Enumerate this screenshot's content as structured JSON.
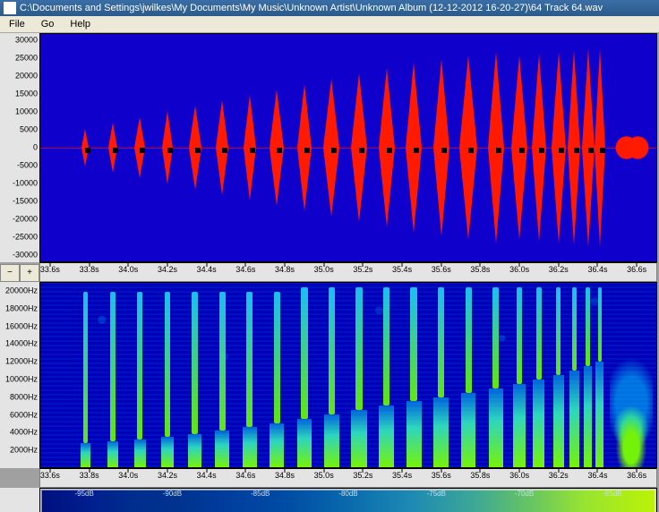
{
  "window": {
    "title": "C:\\Documents and Settings\\jwilkes\\My Documents\\My Music\\Unknown Artist\\Unknown Album (12-12-2012 16-20-27)\\64 Track 64.wav"
  },
  "menubar": {
    "items": [
      "File",
      "Go",
      "Help"
    ]
  },
  "colors": {
    "plot_bg": "#1000cc",
    "spec_bg": "#0000b8",
    "waveform": "#ff1a00",
    "axis_bg": "#e4e4e4",
    "text": "#000000",
    "spec_low": "#001080",
    "spec_high": "#c6ff00",
    "titlebar": "#3a6ea5",
    "menubar_bg": "#ece9d8"
  },
  "waveform": {
    "y_unit": "amplitude",
    "y_ticks": [
      -30000,
      -25000,
      -20000,
      -15000,
      -10000,
      -5000,
      0,
      5000,
      10000,
      15000,
      20000,
      25000,
      30000
    ],
    "ylim": [
      -32000,
      32000
    ],
    "x_unit": "s",
    "x_ticks": [
      33.6,
      33.8,
      34.0,
      34.2,
      34.4,
      34.6,
      34.8,
      35.0,
      35.2,
      35.4,
      35.6,
      35.8,
      36.0,
      36.2,
      36.4,
      36.6
    ],
    "xlim": [
      33.55,
      36.7
    ],
    "zoom_buttons": [
      "−",
      "+"
    ],
    "bursts": [
      {
        "t": 33.78,
        "amp": 5500,
        "w": 0.045
      },
      {
        "t": 33.92,
        "amp": 7200,
        "w": 0.05
      },
      {
        "t": 34.06,
        "amp": 8800,
        "w": 0.055
      },
      {
        "t": 34.2,
        "amp": 10400,
        "w": 0.06
      },
      {
        "t": 34.34,
        "amp": 12000,
        "w": 0.065
      },
      {
        "t": 34.48,
        "amp": 13500,
        "w": 0.068
      },
      {
        "t": 34.62,
        "amp": 15000,
        "w": 0.072
      },
      {
        "t": 34.76,
        "amp": 16500,
        "w": 0.076
      },
      {
        "t": 34.9,
        "amp": 18000,
        "w": 0.08
      },
      {
        "t": 35.04,
        "amp": 19500,
        "w": 0.084
      },
      {
        "t": 35.18,
        "amp": 21000,
        "w": 0.088
      },
      {
        "t": 35.32,
        "amp": 22500,
        "w": 0.088
      },
      {
        "t": 35.46,
        "amp": 24000,
        "w": 0.09
      },
      {
        "t": 35.6,
        "amp": 25000,
        "w": 0.09
      },
      {
        "t": 35.74,
        "amp": 26000,
        "w": 0.092
      },
      {
        "t": 35.88,
        "amp": 27000,
        "w": 0.09
      },
      {
        "t": 36.0,
        "amp": 26000,
        "w": 0.085
      },
      {
        "t": 36.1,
        "amp": 26500,
        "w": 0.08
      },
      {
        "t": 36.2,
        "amp": 27000,
        "w": 0.075
      },
      {
        "t": 36.28,
        "amp": 27500,
        "w": 0.07
      },
      {
        "t": 36.35,
        "amp": 28000,
        "w": 0.065
      },
      {
        "t": 36.41,
        "amp": 28000,
        "w": 0.055
      }
    ]
  },
  "spectrogram": {
    "y_unit": "Hz",
    "y_ticks": [
      2000,
      4000,
      6000,
      8000,
      10000,
      12000,
      14000,
      16000,
      18000,
      20000
    ],
    "ylim": [
      0,
      21000
    ],
    "x_ticks": [
      33.6,
      33.8,
      34.0,
      34.2,
      34.4,
      34.6,
      34.8,
      35.0,
      35.2,
      35.4,
      35.6,
      35.8,
      36.0,
      36.2,
      36.4,
      36.6
    ],
    "xlim": [
      33.55,
      36.7
    ],
    "columns": [
      {
        "t": 33.78,
        "base_hz": 2800,
        "top_hz": 20000,
        "w": 0.05
      },
      {
        "t": 33.92,
        "base_hz": 3000,
        "top_hz": 20000,
        "w": 0.055
      },
      {
        "t": 34.06,
        "base_hz": 3200,
        "top_hz": 20000,
        "w": 0.06
      },
      {
        "t": 34.2,
        "base_hz": 3500,
        "top_hz": 20000,
        "w": 0.065
      },
      {
        "t": 34.34,
        "base_hz": 3800,
        "top_hz": 20000,
        "w": 0.068
      },
      {
        "t": 34.48,
        "base_hz": 4200,
        "top_hz": 20000,
        "w": 0.07
      },
      {
        "t": 34.62,
        "base_hz": 4600,
        "top_hz": 20000,
        "w": 0.072
      },
      {
        "t": 34.76,
        "base_hz": 5000,
        "top_hz": 20000,
        "w": 0.074
      },
      {
        "t": 34.9,
        "base_hz": 5500,
        "top_hz": 20500,
        "w": 0.076
      },
      {
        "t": 35.04,
        "base_hz": 6000,
        "top_hz": 20500,
        "w": 0.078
      },
      {
        "t": 35.18,
        "base_hz": 6500,
        "top_hz": 20500,
        "w": 0.078
      },
      {
        "t": 35.32,
        "base_hz": 7000,
        "top_hz": 20500,
        "w": 0.078
      },
      {
        "t": 35.46,
        "base_hz": 7500,
        "top_hz": 20500,
        "w": 0.078
      },
      {
        "t": 35.6,
        "base_hz": 8000,
        "top_hz": 20500,
        "w": 0.076
      },
      {
        "t": 35.74,
        "base_hz": 8500,
        "top_hz": 20500,
        "w": 0.074
      },
      {
        "t": 35.88,
        "base_hz": 9000,
        "top_hz": 20500,
        "w": 0.07
      },
      {
        "t": 36.0,
        "base_hz": 9500,
        "top_hz": 20500,
        "w": 0.065
      },
      {
        "t": 36.1,
        "base_hz": 10000,
        "top_hz": 20500,
        "w": 0.06
      },
      {
        "t": 36.2,
        "base_hz": 10500,
        "top_hz": 20500,
        "w": 0.055
      },
      {
        "t": 36.28,
        "base_hz": 11000,
        "top_hz": 20500,
        "w": 0.05
      },
      {
        "t": 36.35,
        "base_hz": 11500,
        "top_hz": 20500,
        "w": 0.045
      },
      {
        "t": 36.41,
        "base_hz": 12000,
        "top_hz": 20500,
        "w": 0.04
      }
    ]
  },
  "overview": {
    "db_labels": [
      "-95dB",
      "-90dB",
      "-85dB",
      "-80dB",
      "-75dB",
      "-70dB",
      "-65dB"
    ]
  }
}
